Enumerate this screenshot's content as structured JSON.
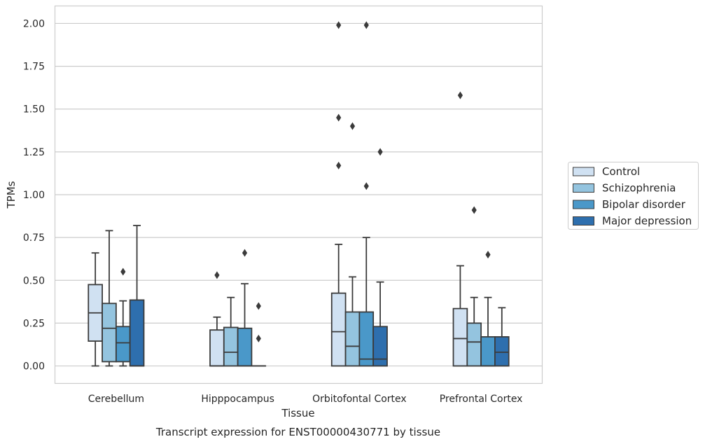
{
  "chart_data": {
    "type": "boxplot",
    "xlabel": "Tissue",
    "ylabel": "TPMs",
    "caption": "Transcript expression for ENST00000430771 by tissue",
    "ylim": [
      -0.1,
      2.1
    ],
    "yticks": [
      0.0,
      0.25,
      0.5,
      0.75,
      1.0,
      1.25,
      1.5,
      1.75,
      2.0
    ],
    "ytick_labels": [
      "0.00",
      "0.25",
      "0.50",
      "0.75",
      "1.00",
      "1.25",
      "1.50",
      "1.75",
      "2.00"
    ],
    "grid": "horizontal",
    "legend_position": "right",
    "categories": [
      "Cerebellum",
      "Hipppocampus",
      "Orbitofontal Cortex",
      "Prefrontal Cortex"
    ],
    "series": [
      {
        "name": "Control",
        "color": "#d0e1f2",
        "boxes": [
          {
            "whislo": 0.0,
            "q1": 0.145,
            "med": 0.31,
            "q3": 0.475,
            "whishi": 0.66,
            "fliers": []
          },
          {
            "whislo": 0.0,
            "q1": 0.0,
            "med": 0.0,
            "q3": 0.21,
            "whishi": 0.285,
            "fliers": [
              0.53
            ]
          },
          {
            "whislo": 0.0,
            "q1": 0.0,
            "med": 0.2,
            "q3": 0.425,
            "whishi": 0.71,
            "fliers": [
              1.17,
              1.45,
              1.99
            ]
          },
          {
            "whislo": 0.0,
            "q1": 0.0,
            "med": 0.16,
            "q3": 0.335,
            "whishi": 0.585,
            "fliers": [
              1.58
            ]
          }
        ]
      },
      {
        "name": "Schizophrenia",
        "color": "#94c4df",
        "boxes": [
          {
            "whislo": 0.0,
            "q1": 0.025,
            "med": 0.22,
            "q3": 0.365,
            "whishi": 0.79,
            "fliers": []
          },
          {
            "whislo": 0.0,
            "q1": 0.0,
            "med": 0.08,
            "q3": 0.225,
            "whishi": 0.4,
            "fliers": []
          },
          {
            "whislo": 0.0,
            "q1": 0.0,
            "med": 0.115,
            "q3": 0.315,
            "whishi": 0.52,
            "fliers": [
              1.4
            ]
          },
          {
            "whislo": 0.0,
            "q1": 0.0,
            "med": 0.14,
            "q3": 0.25,
            "whishi": 0.4,
            "fliers": [
              0.91
            ]
          }
        ]
      },
      {
        "name": "Bipolar disorder",
        "color": "#4a98c9",
        "boxes": [
          {
            "whislo": 0.0,
            "q1": 0.025,
            "med": 0.135,
            "q3": 0.23,
            "whishi": 0.38,
            "fliers": [
              0.55
            ]
          },
          {
            "whislo": 0.0,
            "q1": 0.0,
            "med": 0.0,
            "q3": 0.22,
            "whishi": 0.48,
            "fliers": [
              0.66
            ]
          },
          {
            "whislo": 0.0,
            "q1": 0.0,
            "med": 0.04,
            "q3": 0.315,
            "whishi": 0.75,
            "fliers": [
              1.05,
              1.99
            ]
          },
          {
            "whislo": 0.0,
            "q1": 0.0,
            "med": 0.0,
            "q3": 0.17,
            "whishi": 0.4,
            "fliers": [
              0.65
            ]
          }
        ]
      },
      {
        "name": "Major depression",
        "color": "#2e6fae",
        "boxes": [
          {
            "whislo": 0.0,
            "q1": 0.0,
            "med": 0.0,
            "q3": 0.385,
            "whishi": 0.82,
            "fliers": []
          },
          {
            "whislo": 0.0,
            "q1": 0.0,
            "med": 0.0,
            "q3": 0.0,
            "whishi": 0.0,
            "fliers": [
              0.16,
              0.35
            ]
          },
          {
            "whislo": 0.0,
            "q1": 0.0,
            "med": 0.04,
            "q3": 0.23,
            "whishi": 0.49,
            "fliers": [
              1.25
            ]
          },
          {
            "whislo": 0.0,
            "q1": 0.0,
            "med": 0.08,
            "q3": 0.17,
            "whishi": 0.34,
            "fliers": []
          }
        ]
      }
    ]
  }
}
